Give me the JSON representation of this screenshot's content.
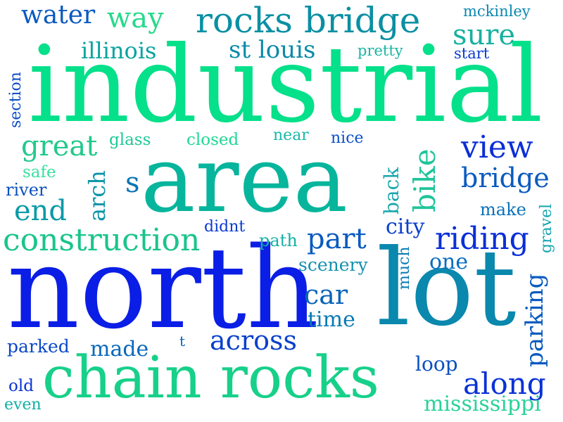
{
  "words": [
    {
      "text": "industrial",
      "color": "#05e08a",
      "orientation": "horizontal"
    },
    {
      "text": "north",
      "color": "#0a1ee6",
      "orientation": "horizontal"
    },
    {
      "text": "area",
      "color": "#06b59c",
      "orientation": "horizontal"
    },
    {
      "text": "lot",
      "color": "#0a88ad",
      "orientation": "horizontal"
    },
    {
      "text": "chain rocks",
      "color": "#17d08a",
      "orientation": "horizontal"
    },
    {
      "text": "rocks bridge",
      "color": "#0a8fa3",
      "orientation": "horizontal"
    },
    {
      "text": "construction",
      "color": "#1ac48c",
      "orientation": "horizontal"
    },
    {
      "text": "water",
      "color": "#0a5ac0",
      "orientation": "horizontal"
    },
    {
      "text": "way",
      "color": "#29d98c",
      "orientation": "horizontal"
    },
    {
      "text": "sure",
      "color": "#15b1a1",
      "orientation": "horizontal"
    },
    {
      "text": "st louis",
      "color": "#0a8aa8",
      "orientation": "horizontal"
    },
    {
      "text": "illinois",
      "color": "#0aa3a1",
      "orientation": "horizontal"
    },
    {
      "text": "mckinley",
      "color": "#0a88b0",
      "orientation": "horizontal"
    },
    {
      "text": "pretty",
      "color": "#19b5a2",
      "orientation": "horizontal"
    },
    {
      "text": "start",
      "color": "#0a3ad0",
      "orientation": "horizontal"
    },
    {
      "text": "great",
      "color": "#22c98c",
      "orientation": "horizontal"
    },
    {
      "text": "glass",
      "color": "#1fc896",
      "orientation": "horizontal"
    },
    {
      "text": "closed",
      "color": "#1fd896",
      "orientation": "horizontal"
    },
    {
      "text": "near",
      "color": "#1ab8aa",
      "orientation": "horizontal"
    },
    {
      "text": "nice",
      "color": "#0a50c8",
      "orientation": "horizontal"
    },
    {
      "text": "view",
      "color": "#0a2ed8",
      "orientation": "horizontal"
    },
    {
      "text": "bridge",
      "color": "#0a5ac0",
      "orientation": "horizontal"
    },
    {
      "text": "safe",
      "color": "#3ae0a0",
      "orientation": "horizontal"
    },
    {
      "text": "river",
      "color": "#0a50c0",
      "orientation": "horizontal"
    },
    {
      "text": "s",
      "color": "#0a74b5",
      "orientation": "horizontal"
    },
    {
      "text": "end",
      "color": "#0a9aa8",
      "orientation": "horizontal"
    },
    {
      "text": "make",
      "color": "#0a70b8",
      "orientation": "horizontal"
    },
    {
      "text": "didnt",
      "color": "#0a3ad0",
      "orientation": "horizontal"
    },
    {
      "text": "path",
      "color": "#14b0a5",
      "orientation": "horizontal"
    },
    {
      "text": "part",
      "color": "#0a5ac0",
      "orientation": "horizontal"
    },
    {
      "text": "city",
      "color": "#0a40cc",
      "orientation": "horizontal"
    },
    {
      "text": "riding",
      "color": "#0a2ed8",
      "orientation": "horizontal"
    },
    {
      "text": "one",
      "color": "#0a6cc0",
      "orientation": "horizontal"
    },
    {
      "text": "scenery",
      "color": "#1590b0",
      "orientation": "horizontal"
    },
    {
      "text": "car",
      "color": "#0a64b8",
      "orientation": "horizontal"
    },
    {
      "text": "time",
      "color": "#0a7ab5",
      "orientation": "horizontal"
    },
    {
      "text": "across",
      "color": "#0a40cc",
      "orientation": "horizontal"
    },
    {
      "text": "parked",
      "color": "#0a48c8",
      "orientation": "horizontal"
    },
    {
      "text": "made",
      "color": "#0a68bc",
      "orientation": "horizontal"
    },
    {
      "text": "t",
      "color": "#0a64b8",
      "orientation": "horizontal"
    },
    {
      "text": "loop",
      "color": "#0a50c0",
      "orientation": "horizontal"
    },
    {
      "text": "along",
      "color": "#0a32d8",
      "orientation": "horizontal"
    },
    {
      "text": "old",
      "color": "#0a32d8",
      "orientation": "horizontal"
    },
    {
      "text": "even",
      "color": "#10b0a5",
      "orientation": "horizontal"
    },
    {
      "text": "mississippi",
      "color": "#2ad29a",
      "orientation": "horizontal"
    },
    {
      "text": "section",
      "color": "#0a4cc4",
      "orientation": "vertical"
    },
    {
      "text": "arch",
      "color": "#0a94a8",
      "orientation": "vertical"
    },
    {
      "text": "back",
      "color": "#16a6ac",
      "orientation": "vertical"
    },
    {
      "text": "bike",
      "color": "#20c59a",
      "orientation": "vertical"
    },
    {
      "text": "much",
      "color": "#0a7ab5",
      "orientation": "vertical"
    },
    {
      "text": "gravel",
      "color": "#15a5b0",
      "orientation": "vertical"
    },
    {
      "text": "parking",
      "color": "#0a5ac0",
      "orientation": "vertical"
    }
  ]
}
